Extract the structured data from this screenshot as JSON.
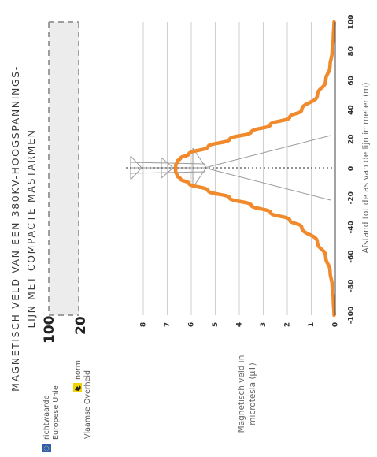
{
  "chart_data": {
    "type": "line",
    "title_lines": [
      "MAGNETISCH VELD VAN EEN 380KV-HOOGSPANNINGS-",
      "LIJN MET COMPACTE MASTARMEN"
    ],
    "xlabel": "Afstand tot de as van de lijn in meter (m)",
    "ylabel_lines": [
      "Magnetisch veld in",
      "microtesla (µT)"
    ],
    "x_ticks": [
      -100,
      -80,
      -60,
      -40,
      -20,
      0,
      20,
      40,
      60,
      80,
      100
    ],
    "y_ticks": [
      0,
      1,
      2,
      3,
      4,
      5,
      6,
      7,
      8
    ],
    "xlim": [
      -100,
      100
    ],
    "ylim": [
      0,
      8
    ],
    "reference_lines": [
      {
        "value": 100,
        "label_lines": [
          "richtwaarde",
          "Europese Unie"
        ],
        "icon": "eu-flag-icon",
        "color": "#9e9e9e"
      },
      {
        "value": 20,
        "label_lines": [
          "norm",
          "Vlaamse Overheid"
        ],
        "icon": "flemish-lion-icon",
        "color": "#9e9e9e"
      }
    ],
    "series": [
      {
        "color": "#f08a2c",
        "x": [
          -100,
          -90,
          -80,
          -70,
          -60,
          -50,
          -40,
          -35,
          -30,
          -25,
          -20,
          -15,
          -10,
          -7,
          -5,
          -2,
          0,
          2,
          5,
          7,
          10,
          15,
          20,
          25,
          30,
          35,
          40,
          50,
          60,
          70,
          80,
          90,
          100
        ],
        "y": [
          0.05,
          0.08,
          0.13,
          0.22,
          0.4,
          0.75,
          1.4,
          1.9,
          2.7,
          3.5,
          4.4,
          5.3,
          6.1,
          6.45,
          6.58,
          6.65,
          6.65,
          6.65,
          6.58,
          6.45,
          6.1,
          5.3,
          4.4,
          3.5,
          2.7,
          1.9,
          1.4,
          0.75,
          0.4,
          0.22,
          0.13,
          0.08,
          0.05
        ]
      }
    ]
  }
}
